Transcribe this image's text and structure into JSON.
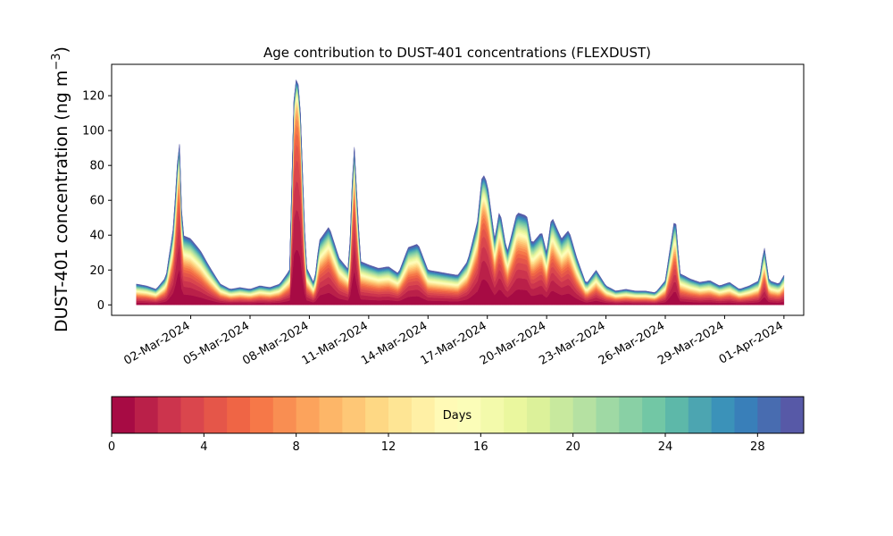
{
  "chart_data": {
    "type": "area",
    "title": "Age contribution to DUST-401 concentrations (FLEXDUST)",
    "xlabel": "",
    "ylabel": "DUST-401 concentration (ng m⁻³)",
    "ylabel_main": "DUST-401 concentration (ng m",
    "ylabel_sup": "−3",
    "ylabel_close": ")",
    "x_start": "2024-02-28T06:00",
    "x_end": "2024-04-01T00:00",
    "xlim": [
      "2024-02-27",
      "2024-04-02"
    ],
    "ylim": [
      -6,
      138
    ],
    "x_ticks": [
      "2024-03-02",
      "2024-03-05",
      "2024-03-08",
      "2024-03-11",
      "2024-03-14",
      "2024-03-17",
      "2024-03-20",
      "2024-03-23",
      "2024-03-26",
      "2024-03-29",
      "2024-04-01"
    ],
    "x_tick_labels": [
      "02-Mar-2024",
      "05-Mar-2024",
      "08-Mar-2024",
      "11-Mar-2024",
      "14-Mar-2024",
      "17-Mar-2024",
      "20-Mar-2024",
      "23-Mar-2024",
      "26-Mar-2024",
      "29-Mar-2024",
      "01-Apr-2024"
    ],
    "y_ticks": [
      0,
      20,
      40,
      60,
      80,
      100,
      120
    ],
    "y_tick_labels": [
      "0",
      "20",
      "40",
      "60",
      "80",
      "100",
      "120"
    ],
    "grid": false,
    "total_concentration": [
      [
        "2024-02-28T06:00",
        12
      ],
      [
        "2024-02-28T18:00",
        11
      ],
      [
        "2024-02-29T06:00",
        9
      ],
      [
        "2024-02-29T18:00",
        16
      ],
      [
        "2024-03-01T03:00",
        45
      ],
      [
        "2024-03-01T10:00",
        98
      ],
      [
        "2024-03-01T14:00",
        40
      ],
      [
        "2024-03-02T00:00",
        38
      ],
      [
        "2024-03-02T12:00",
        31
      ],
      [
        "2024-03-03T00:00",
        21
      ],
      [
        "2024-03-03T12:00",
        12
      ],
      [
        "2024-03-04T00:00",
        9
      ],
      [
        "2024-03-04T12:00",
        10
      ],
      [
        "2024-03-05T00:00",
        9
      ],
      [
        "2024-03-05T12:00",
        11
      ],
      [
        "2024-03-06T00:00",
        10
      ],
      [
        "2024-03-06T12:00",
        12
      ],
      [
        "2024-03-07T00:00",
        20
      ],
      [
        "2024-03-07T06:00",
        131
      ],
      [
        "2024-03-07T12:00",
        125
      ],
      [
        "2024-03-07T20:00",
        22
      ],
      [
        "2024-03-08T06:00",
        12
      ],
      [
        "2024-03-08T12:00",
        37
      ],
      [
        "2024-03-09T00:00",
        45
      ],
      [
        "2024-03-09T12:00",
        27
      ],
      [
        "2024-03-10T00:00",
        20
      ],
      [
        "2024-03-10T06:00",
        96
      ],
      [
        "2024-03-10T14:00",
        25
      ],
      [
        "2024-03-11T00:00",
        23
      ],
      [
        "2024-03-11T12:00",
        21
      ],
      [
        "2024-03-12T00:00",
        22
      ],
      [
        "2024-03-12T12:00",
        18
      ],
      [
        "2024-03-13T00:00",
        33
      ],
      [
        "2024-03-13T12:00",
        35
      ],
      [
        "2024-03-14T00:00",
        20
      ],
      [
        "2024-03-14T12:00",
        19
      ],
      [
        "2024-03-15T00:00",
        18
      ],
      [
        "2024-03-15T12:00",
        17
      ],
      [
        "2024-03-16T00:00",
        25
      ],
      [
        "2024-03-16T12:00",
        48
      ],
      [
        "2024-03-16T18:00",
        76
      ],
      [
        "2024-03-17T00:00",
        70
      ],
      [
        "2024-03-17T09:00",
        38
      ],
      [
        "2024-03-17T15:00",
        55
      ],
      [
        "2024-03-18T00:00",
        30
      ],
      [
        "2024-03-18T12:00",
        53
      ],
      [
        "2024-03-19T00:00",
        51
      ],
      [
        "2024-03-19T06:00",
        35
      ],
      [
        "2024-03-19T18:00",
        42
      ],
      [
        "2024-03-20T00:00",
        30
      ],
      [
        "2024-03-20T06:00",
        51
      ],
      [
        "2024-03-20T18:00",
        38
      ],
      [
        "2024-03-21T03:00",
        43
      ],
      [
        "2024-03-21T12:00",
        28
      ],
      [
        "2024-03-22T00:00",
        12
      ],
      [
        "2024-03-22T12:00",
        20
      ],
      [
        "2024-03-23T00:00",
        11
      ],
      [
        "2024-03-23T12:00",
        8
      ],
      [
        "2024-03-24T00:00",
        9
      ],
      [
        "2024-03-24T12:00",
        8
      ],
      [
        "2024-03-25T00:00",
        8
      ],
      [
        "2024-03-25T12:00",
        7
      ],
      [
        "2024-03-26T00:00",
        14
      ],
      [
        "2024-03-26T12:00",
        52
      ],
      [
        "2024-03-26T18:00",
        18
      ],
      [
        "2024-03-27T06:00",
        15
      ],
      [
        "2024-03-27T18:00",
        13
      ],
      [
        "2024-03-28T06:00",
        14
      ],
      [
        "2024-03-28T18:00",
        11
      ],
      [
        "2024-03-29T06:00",
        13
      ],
      [
        "2024-03-29T18:00",
        9
      ],
      [
        "2024-03-30T06:00",
        11
      ],
      [
        "2024-03-30T18:00",
        14
      ],
      [
        "2024-03-31T00:00",
        34
      ],
      [
        "2024-03-31T06:00",
        14
      ],
      [
        "2024-03-31T18:00",
        12
      ],
      [
        "2024-04-01T00:00",
        17
      ]
    ],
    "colorbar": {
      "label": "Days",
      "min": 0,
      "max": 30,
      "bins": 30,
      "ticks": [
        0,
        4,
        8,
        12,
        16,
        20,
        24,
        28
      ],
      "tick_labels": [
        "0",
        "4",
        "8",
        "12",
        "16",
        "20",
        "24",
        "28"
      ],
      "colormap": "Spectral"
    }
  }
}
